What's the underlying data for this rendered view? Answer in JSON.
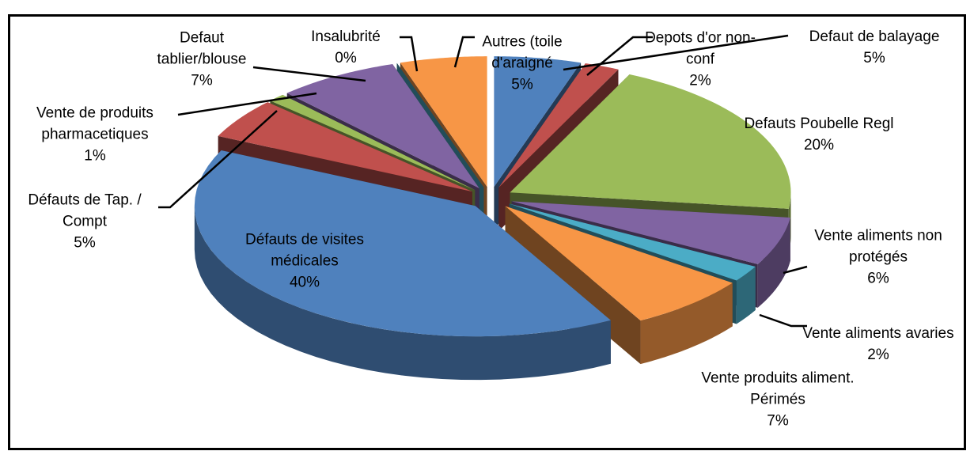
{
  "chart_data": {
    "type": "pie",
    "categories": [
      "Defaut de balayage",
      "Depots d'or non-conf",
      "Defauts Poubelle Regl",
      "Vente aliments non protégés",
      "Vente aliments avaries",
      "Vente produits aliment. Périmés",
      "Défauts de visites médicales",
      "Défauts de Tap. / Compt",
      "Vente de produits pharmacetiques",
      "Defaut tablier/blouse",
      "Insalubrité",
      "Autres (toile d'araigné"
    ],
    "values": [
      5,
      2,
      20,
      6,
      2,
      7,
      40,
      5,
      1,
      7,
      0,
      5
    ],
    "value_labels": [
      "5%",
      "2%",
      "20%",
      "6%",
      "2%",
      "7%",
      "40%",
      "5%",
      "1%",
      "7%",
      "0%",
      "5%"
    ],
    "colors": [
      "#4f81bd",
      "#c0504d",
      "#9bbb59",
      "#8064a2",
      "#4bacc6",
      "#f79646",
      "#4f81bd",
      "#c0504d",
      "#9bbb59",
      "#8064a2",
      "#4bacc6",
      "#f79646"
    ]
  }
}
